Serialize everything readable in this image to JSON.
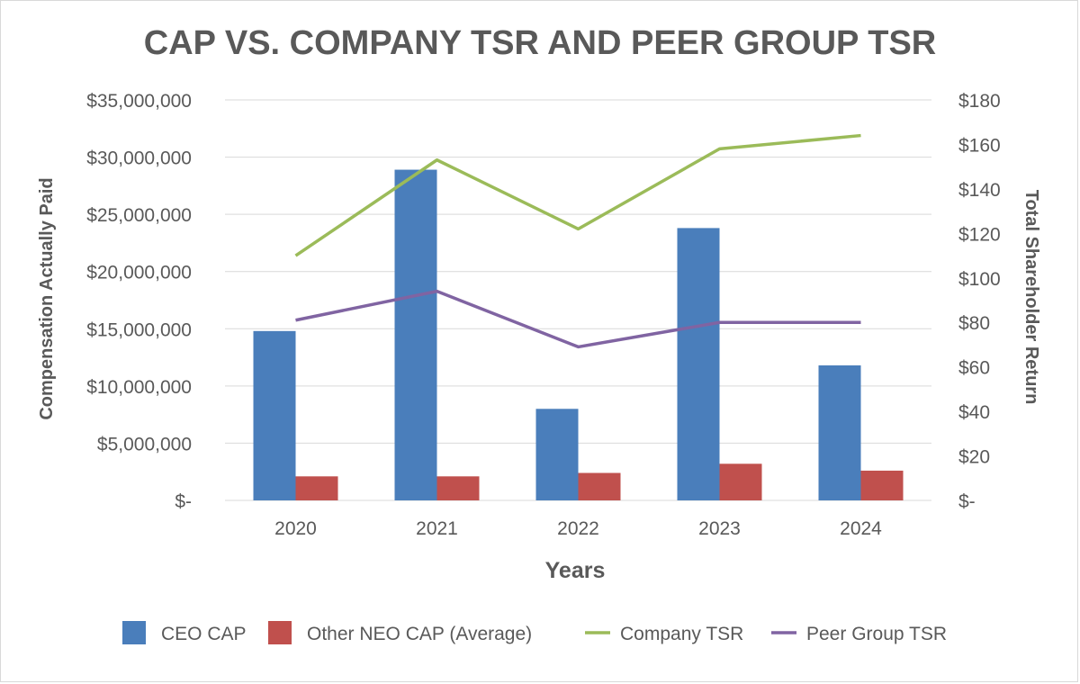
{
  "chart_data": {
    "type": "bar",
    "title": "CAP VS. COMPANY TSR AND PEER GROUP TSR",
    "xlabel": "Years",
    "ylabel": "Compensation Actually Paid",
    "y2label": "Total Shareholder Return",
    "categories": [
      "2020",
      "2021",
      "2022",
      "2023",
      "2024"
    ],
    "ylim": [
      0,
      35000000
    ],
    "y_ticks": [
      0,
      5000000,
      10000000,
      15000000,
      20000000,
      25000000,
      30000000,
      35000000
    ],
    "y_tick_labels": [
      "$-",
      "$5,000,000",
      "$10,000,000",
      "$15,000,000",
      "$20,000,000",
      "$25,000,000",
      "$30,000,000",
      "$35,000,000"
    ],
    "y2lim": [
      0,
      180
    ],
    "y2_ticks": [
      0,
      20,
      40,
      60,
      80,
      100,
      120,
      140,
      160,
      180
    ],
    "y2_tick_labels": [
      "$-",
      "$20",
      "$40",
      "$60",
      "$80",
      "$100",
      "$120",
      "$140",
      "$160",
      "$180"
    ],
    "grid": true,
    "legend_position": "bottom",
    "series": [
      {
        "name": "CEO CAP",
        "kind": "bar",
        "axis": "left",
        "color": "#4a7ebb",
        "values": [
          14800000,
          28900000,
          8000000,
          23800000,
          11800000
        ]
      },
      {
        "name": "Other NEO CAP (Average)",
        "kind": "bar",
        "axis": "left",
        "color": "#c0504d",
        "values": [
          2100000,
          2100000,
          2400000,
          3200000,
          2600000
        ]
      },
      {
        "name": "Company TSR",
        "kind": "line",
        "axis": "right",
        "color": "#9bbb59",
        "values": [
          110,
          153,
          122,
          158,
          164
        ]
      },
      {
        "name": "Peer Group TSR",
        "kind": "line",
        "axis": "right",
        "color": "#8064a2",
        "values": [
          81,
          94,
          69,
          80,
          80
        ]
      }
    ]
  }
}
